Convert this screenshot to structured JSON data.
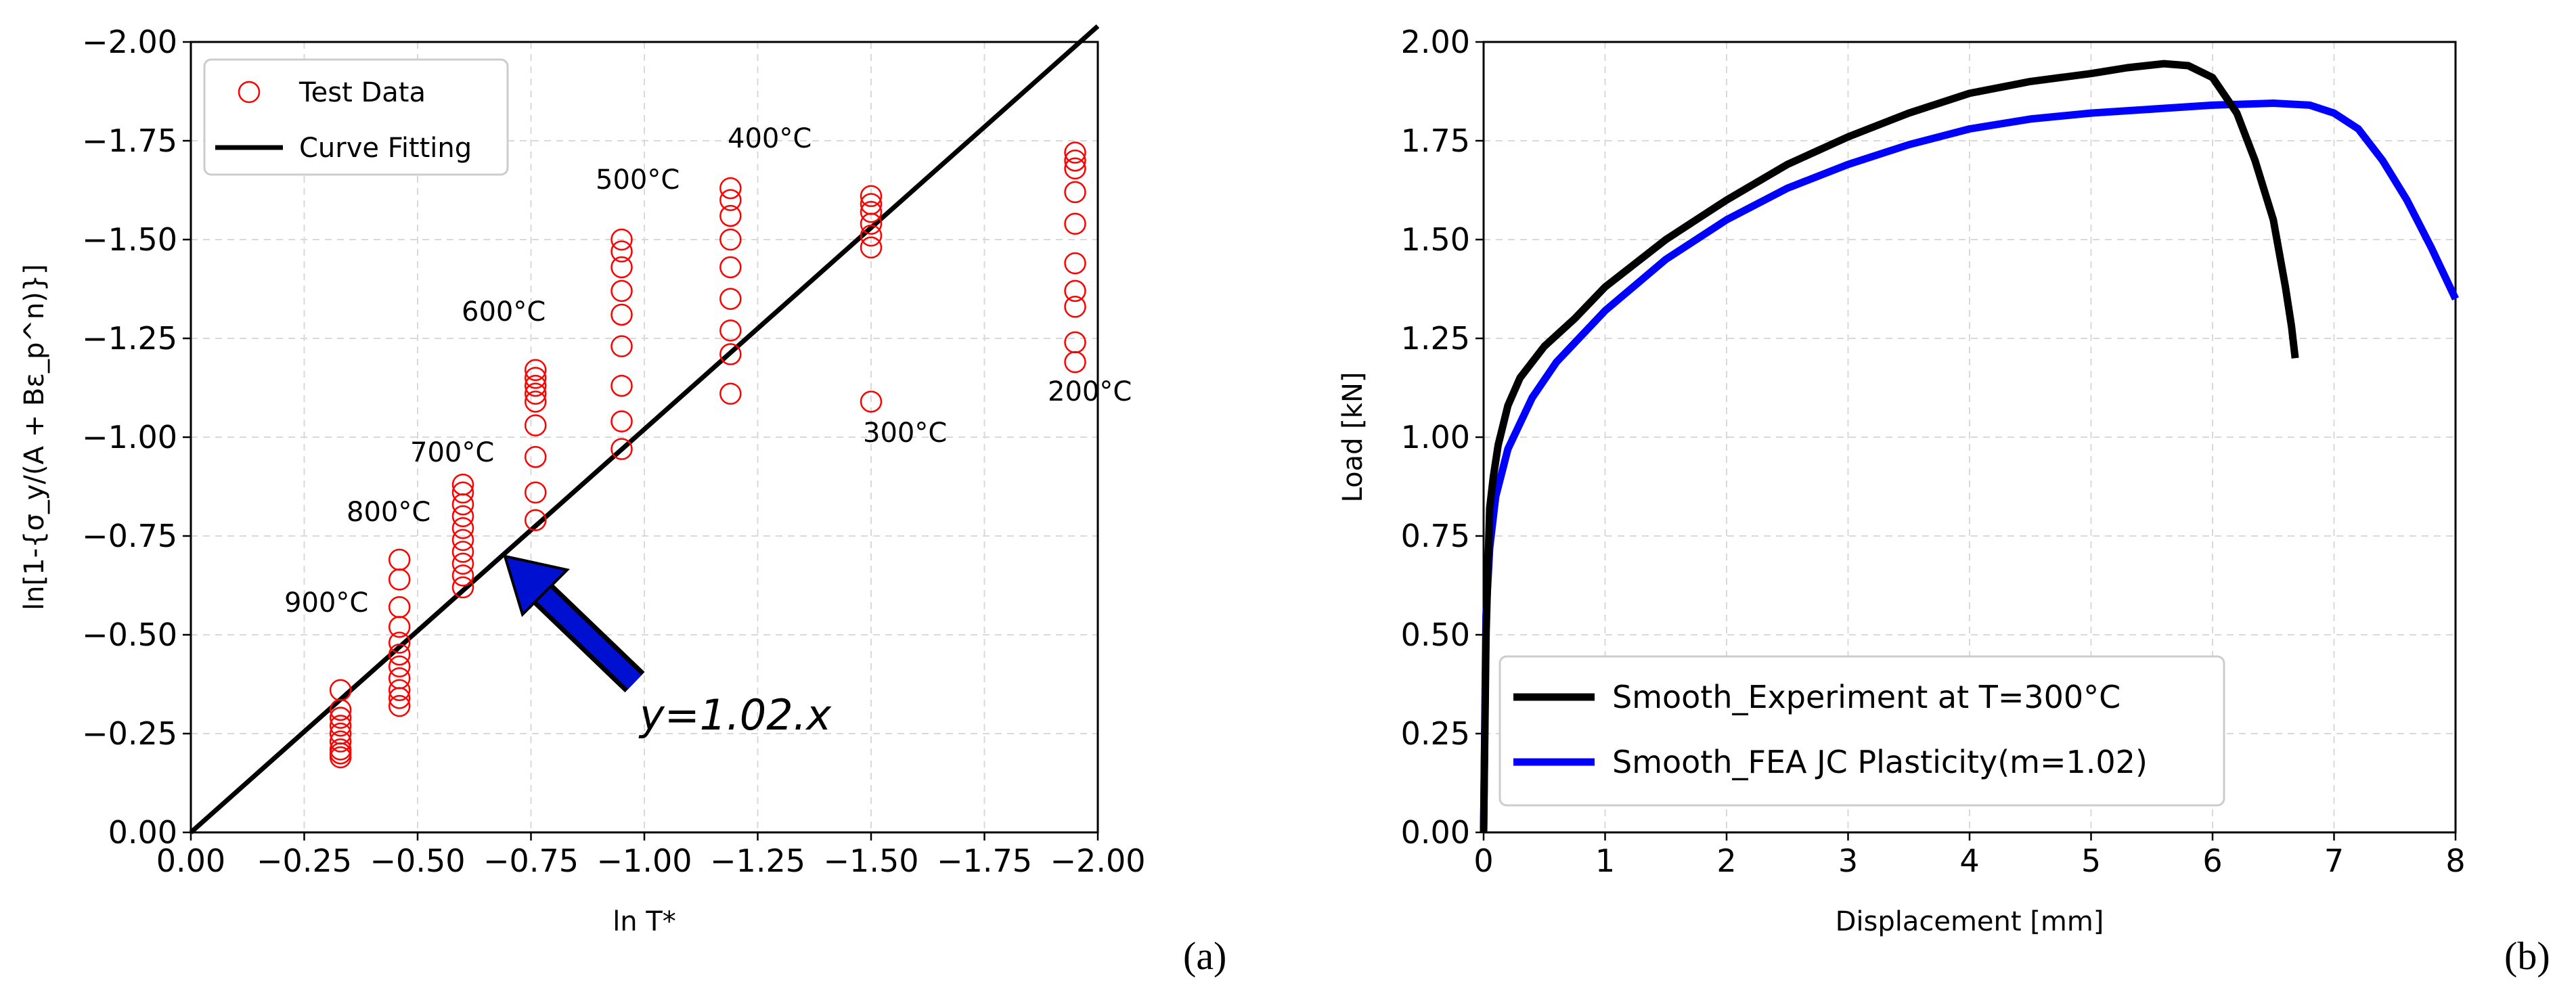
{
  "chart_data": [
    {
      "type": "scatter",
      "panel_label": "(a)",
      "xlabel": "ln T*",
      "ylabel": "ln[1-{σ_y/(A + Bε_p^n)}]",
      "xlim": [
        0.0,
        -2.0
      ],
      "ylim": [
        0.0,
        -2.0
      ],
      "xticks": [
        "0.00",
        "−0.25",
        "−0.50",
        "−0.75",
        "−1.00",
        "−1.25",
        "−1.50",
        "−1.75",
        "−2.00"
      ],
      "yticks": [
        "0.00",
        "−0.25",
        "−0.50",
        "−0.75",
        "−1.00",
        "−1.25",
        "−1.50",
        "−1.75",
        "−2.00"
      ],
      "grid": true,
      "legend": {
        "position": "top-left",
        "entries": [
          "Test Data",
          "Curve Fitting"
        ]
      },
      "fit_label": "y=1.02.x",
      "fit_line": {
        "slope": 1.02,
        "x": [
          0.0,
          -2.0
        ]
      },
      "groups": [
        {
          "label": "900°C",
          "x": -0.33,
          "y": [
            -0.19,
            -0.2,
            -0.21,
            -0.23,
            -0.25,
            -0.27,
            -0.29,
            -0.31,
            -0.36
          ]
        },
        {
          "label": "800°C",
          "x": -0.46,
          "y": [
            -0.32,
            -0.34,
            -0.36,
            -0.39,
            -0.42,
            -0.45,
            -0.48,
            -0.52,
            -0.57,
            -0.64,
            -0.69
          ]
        },
        {
          "label": "700°C",
          "x": -0.6,
          "y": [
            -0.62,
            -0.65,
            -0.68,
            -0.71,
            -0.74,
            -0.77,
            -0.8,
            -0.83,
            -0.86,
            -0.88
          ]
        },
        {
          "label": "600°C",
          "x": -0.76,
          "y": [
            -0.79,
            -0.86,
            -0.95,
            -1.03,
            -1.09,
            -1.11,
            -1.13,
            -1.15,
            -1.17
          ]
        },
        {
          "label": "500°C",
          "x": -0.95,
          "y": [
            -0.97,
            -1.04,
            -1.13,
            -1.23,
            -1.31,
            -1.37,
            -1.43,
            -1.47,
            -1.5
          ]
        },
        {
          "label": "400°C",
          "x": -1.19,
          "y": [
            -1.11,
            -1.21,
            -1.27,
            -1.35,
            -1.43,
            -1.5,
            -1.56,
            -1.6,
            -1.63
          ]
        },
        {
          "label": "300°C",
          "x": -1.5,
          "y": [
            -1.09,
            -1.48,
            -1.51,
            -1.54,
            -1.57,
            -1.59,
            -1.61
          ]
        },
        {
          "label": "200°C",
          "x": -1.95,
          "y": [
            -1.19,
            -1.24,
            -1.33,
            -1.37,
            -1.44,
            -1.54,
            -1.62,
            -1.68,
            -1.7,
            -1.72
          ]
        }
      ]
    },
    {
      "type": "line",
      "panel_label": "(b)",
      "xlabel": "Displacement [mm]",
      "ylabel": "Load [kN]",
      "xlim": [
        0,
        8
      ],
      "ylim": [
        0.0,
        2.0
      ],
      "xticks": [
        "0",
        "1",
        "2",
        "3",
        "4",
        "5",
        "6",
        "7",
        "8"
      ],
      "yticks": [
        "0.00",
        "0.25",
        "0.50",
        "0.75",
        "1.00",
        "1.25",
        "1.50",
        "1.75",
        "2.00"
      ],
      "grid": true,
      "legend": {
        "position": "bottom-left"
      },
      "series": [
        {
          "name": "Smooth_Experiment at T=300°C",
          "color": "#000000",
          "x": [
            0.0,
            0.02,
            0.05,
            0.08,
            0.12,
            0.2,
            0.3,
            0.5,
            0.75,
            1.0,
            1.5,
            2.0,
            2.5,
            3.0,
            3.5,
            4.0,
            4.5,
            5.0,
            5.3,
            5.6,
            5.8,
            6.0,
            6.2,
            6.35,
            6.5,
            6.6,
            6.65,
            6.68
          ],
          "y": [
            0.0,
            0.5,
            0.82,
            0.9,
            0.98,
            1.08,
            1.15,
            1.23,
            1.3,
            1.38,
            1.5,
            1.6,
            1.69,
            1.76,
            1.82,
            1.87,
            1.9,
            1.92,
            1.935,
            1.945,
            1.94,
            1.91,
            1.82,
            1.7,
            1.55,
            1.38,
            1.28,
            1.2
          ]
        },
        {
          "name": "Smooth_FEA JC Plasticity(m=1.02)",
          "color": "#0000ff",
          "x": [
            0.0,
            0.02,
            0.05,
            0.1,
            0.2,
            0.4,
            0.6,
            1.0,
            1.5,
            2.0,
            2.5,
            3.0,
            3.5,
            4.0,
            4.5,
            5.0,
            5.5,
            6.0,
            6.5,
            6.8,
            7.0,
            7.2,
            7.4,
            7.6,
            7.8,
            8.0
          ],
          "y": [
            0.0,
            0.55,
            0.72,
            0.85,
            0.97,
            1.1,
            1.19,
            1.32,
            1.45,
            1.55,
            1.63,
            1.69,
            1.74,
            1.78,
            1.805,
            1.82,
            1.83,
            1.84,
            1.845,
            1.84,
            1.82,
            1.78,
            1.7,
            1.6,
            1.48,
            1.35
          ]
        }
      ]
    }
  ]
}
